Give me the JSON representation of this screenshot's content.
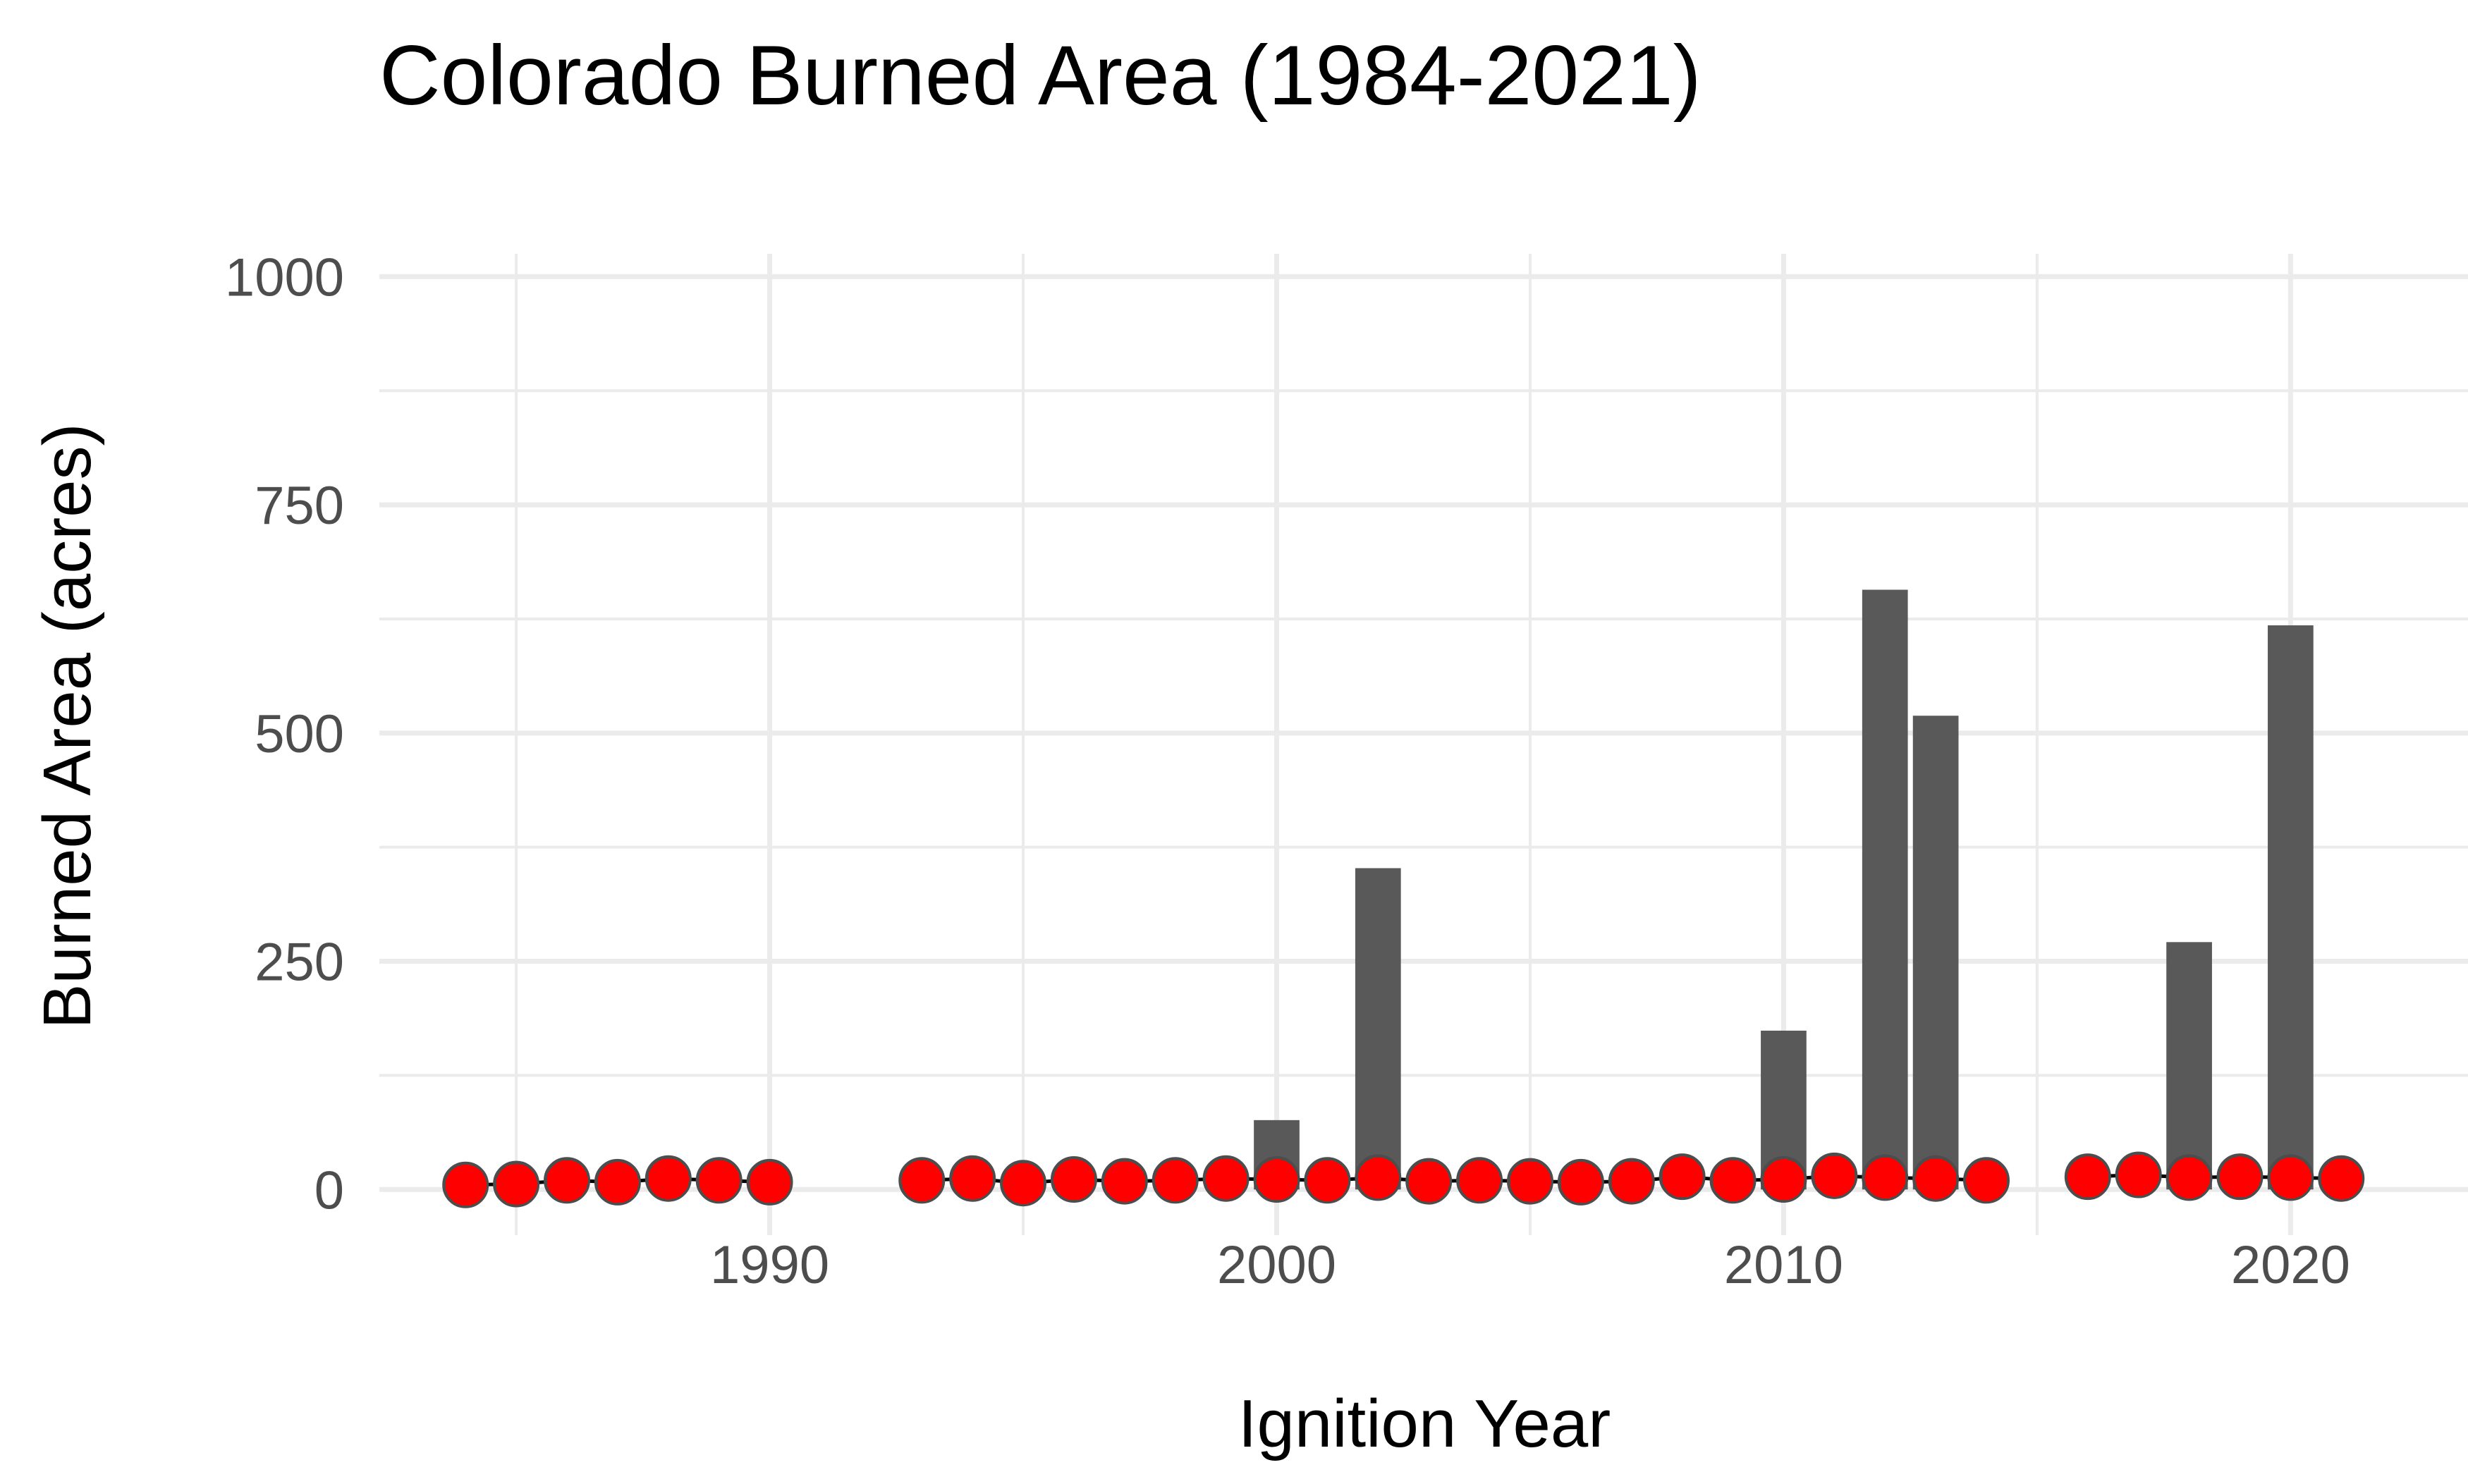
{
  "chart_data": {
    "type": "bar",
    "title": "Colorado Burned Area (1984-2021)",
    "xlabel": "Ignition Year",
    "ylabel": "Burned Area (acres)",
    "xlim": [
      1982.3,
      2023.5
    ],
    "ylim": [
      -50,
      1025
    ],
    "x_ticks": [
      1990,
      2000,
      2010,
      2020
    ],
    "x_tick_labels": [
      "1990",
      "2000",
      "2010",
      "2020"
    ],
    "y_ticks": [
      0,
      250,
      500,
      750,
      1000
    ],
    "y_tick_labels": [
      "0",
      "250",
      "500",
      "750",
      "1000"
    ],
    "grid": true,
    "legend": "none",
    "colors": {
      "bar": "#595959",
      "point_fill": "#ff0000",
      "point_stroke": "#4d4d4d",
      "line": "#000000",
      "grid": "#ebebeb"
    },
    "bars": [
      {
        "x": 2000,
        "y": 76
      },
      {
        "x": 2002,
        "y": 352
      },
      {
        "x": 2010,
        "y": 174
      },
      {
        "x": 2012,
        "y": 657
      },
      {
        "x": 2013,
        "y": 519
      },
      {
        "x": 2018,
        "y": 271
      },
      {
        "x": 2020,
        "y": 618
      }
    ],
    "points": [
      {
        "x": 1984,
        "y": 5
      },
      {
        "x": 1985,
        "y": 6
      },
      {
        "x": 1986,
        "y": 10
      },
      {
        "x": 1987,
        "y": 8
      },
      {
        "x": 1988,
        "y": 12
      },
      {
        "x": 1989,
        "y": 10
      },
      {
        "x": 1990,
        "y": 8
      },
      {
        "x": 1993,
        "y": 10
      },
      {
        "x": 1994,
        "y": 12
      },
      {
        "x": 1995,
        "y": 7
      },
      {
        "x": 1996,
        "y": 11
      },
      {
        "x": 1997,
        "y": 9
      },
      {
        "x": 1998,
        "y": 10
      },
      {
        "x": 1999,
        "y": 12
      },
      {
        "x": 2000,
        "y": 11
      },
      {
        "x": 2001,
        "y": 10
      },
      {
        "x": 2002,
        "y": 13
      },
      {
        "x": 2003,
        "y": 9
      },
      {
        "x": 2004,
        "y": 10
      },
      {
        "x": 2005,
        "y": 9
      },
      {
        "x": 2006,
        "y": 8
      },
      {
        "x": 2007,
        "y": 9
      },
      {
        "x": 2008,
        "y": 14
      },
      {
        "x": 2009,
        "y": 10
      },
      {
        "x": 2010,
        "y": 11
      },
      {
        "x": 2011,
        "y": 15
      },
      {
        "x": 2012,
        "y": 13
      },
      {
        "x": 2013,
        "y": 12
      },
      {
        "x": 2014,
        "y": 10
      },
      {
        "x": 2016,
        "y": 14
      },
      {
        "x": 2017,
        "y": 16
      },
      {
        "x": 2018,
        "y": 13
      },
      {
        "x": 2019,
        "y": 14
      },
      {
        "x": 2020,
        "y": 13
      },
      {
        "x": 2021,
        "y": 12
      }
    ]
  }
}
